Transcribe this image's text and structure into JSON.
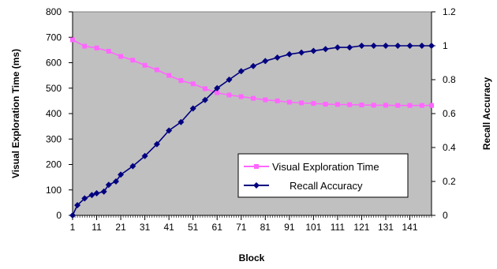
{
  "chart_data": {
    "type": "line",
    "xlabel": "Block",
    "ylabel_left": "Visual Exploration Time (ms)",
    "ylabel_right": "Recall Accuracy",
    "xlim": [
      1,
      150
    ],
    "ylim_left": [
      0,
      800
    ],
    "ylim_right": [
      0,
      1.2
    ],
    "x_ticks": [
      "1",
      "11",
      "21",
      "31",
      "41",
      "51",
      "61",
      "71",
      "81",
      "91",
      "101",
      "111",
      "121",
      "131",
      "141"
    ],
    "y_ticks_left": [
      "0",
      "100",
      "200",
      "300",
      "400",
      "500",
      "600",
      "700",
      "800"
    ],
    "y_ticks_right": [
      "0",
      "0.2",
      "0.4",
      "0.6",
      "0.8",
      "1",
      "1.2"
    ],
    "grid": false,
    "legend_position": "lower-right",
    "series": [
      {
        "name": "Visual Exploration Time",
        "axis": "left",
        "color": "#ff66ff",
        "marker": "square",
        "x": [
          1,
          6,
          11,
          16,
          21,
          26,
          31,
          36,
          41,
          46,
          51,
          56,
          61,
          66,
          71,
          76,
          81,
          86,
          91,
          96,
          101,
          106,
          111,
          116,
          121,
          126,
          131,
          136,
          141,
          146,
          150
        ],
        "values": [
          690,
          665,
          658,
          645,
          625,
          610,
          590,
          572,
          550,
          530,
          517,
          498,
          482,
          473,
          467,
          460,
          454,
          450,
          445,
          442,
          440,
          437,
          436,
          435,
          434,
          433,
          433,
          432,
          432,
          432,
          432
        ]
      },
      {
        "name": "Recall Accuracy",
        "axis": "right",
        "color": "#000080",
        "marker": "diamond",
        "x": [
          1,
          3,
          6,
          9,
          11,
          14,
          16,
          19,
          21,
          26,
          31,
          36,
          41,
          46,
          51,
          56,
          61,
          66,
          71,
          76,
          81,
          86,
          91,
          96,
          101,
          106,
          111,
          116,
          121,
          126,
          131,
          136,
          141,
          146,
          150
        ],
        "values": [
          0.0,
          0.06,
          0.1,
          0.12,
          0.13,
          0.14,
          0.18,
          0.2,
          0.24,
          0.29,
          0.35,
          0.42,
          0.5,
          0.55,
          0.63,
          0.68,
          0.75,
          0.8,
          0.85,
          0.88,
          0.91,
          0.93,
          0.95,
          0.96,
          0.97,
          0.98,
          0.99,
          0.99,
          1.0,
          1.0,
          1.0,
          1.0,
          1.0,
          1.0,
          1.0
        ]
      }
    ]
  }
}
